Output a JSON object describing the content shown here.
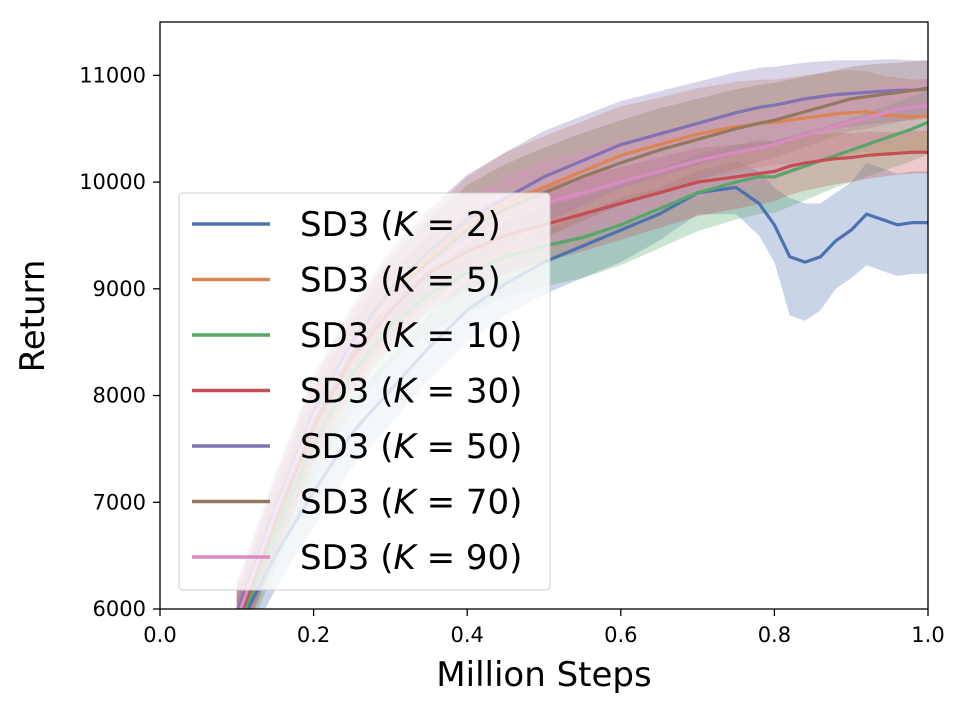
{
  "chart_data": {
    "type": "line",
    "title": "",
    "xlabel": "Million Steps",
    "ylabel": "Return",
    "xlim": [
      0.0,
      1.0
    ],
    "ylim": [
      6000,
      11500
    ],
    "xticks": [
      "0.0",
      "0.2",
      "0.4",
      "0.6",
      "0.8",
      "1.0"
    ],
    "yticks": [
      "6000",
      "7000",
      "8000",
      "9000",
      "10000",
      "11000"
    ],
    "legend_position": "lower-left",
    "x": [
      0.1,
      0.15,
      0.2,
      0.25,
      0.3,
      0.35,
      0.4,
      0.45,
      0.5,
      0.55,
      0.6,
      0.65,
      0.7,
      0.75,
      0.78,
      0.8,
      0.82,
      0.84,
      0.86,
      0.88,
      0.9,
      0.92,
      0.94,
      0.96,
      0.98,
      1.0
    ],
    "series": [
      {
        "name": "SD3 (K = 2)",
        "legend_prefix": "SD3 (",
        "legend_k": "K",
        "legend_eq": " = 2)",
        "color": "#4c72b0",
        "values": [
          5800,
          6500,
          7100,
          7650,
          8050,
          8450,
          8800,
          9050,
          9250,
          9400,
          9550,
          9700,
          9900,
          9950,
          9800,
          9600,
          9300,
          9250,
          9300,
          9450,
          9550,
          9700,
          9650,
          9600,
          9620,
          9620
        ],
        "spread": [
          300,
          320,
          330,
          330,
          320,
          310,
          300,
          300,
          300,
          300,
          300,
          250,
          200,
          250,
          300,
          350,
          550,
          550,
          500,
          450,
          450,
          480,
          480,
          480,
          480,
          480
        ]
      },
      {
        "name": "SD3 (K = 5)",
        "legend_prefix": "SD3 (",
        "legend_k": "K",
        "legend_eq": " = 5)",
        "color": "#dd8452",
        "values": [
          5900,
          6900,
          7800,
          8450,
          8950,
          9300,
          9600,
          9800,
          9950,
          10100,
          10250,
          10350,
          10450,
          10520,
          10550,
          10560,
          10580,
          10600,
          10620,
          10640,
          10650,
          10660,
          10630,
          10620,
          10610,
          10620
        ],
        "spread": [
          300,
          330,
          350,
          350,
          380,
          420,
          450,
          480,
          480,
          470,
          460,
          440,
          430,
          420,
          410,
          400,
          400,
          400,
          400,
          400,
          400,
          380,
          370,
          360,
          350,
          350
        ]
      },
      {
        "name": "SD3 (K = 10)",
        "legend_prefix": "SD3 (",
        "legend_k": "K",
        "legend_eq": " = 10)",
        "color": "#55a868",
        "values": [
          5800,
          6700,
          7550,
          8200,
          8650,
          8950,
          9150,
          9300,
          9400,
          9480,
          9600,
          9750,
          9900,
          10000,
          10050,
          10050,
          10100,
          10150,
          10200,
          10250,
          10300,
          10350,
          10400,
          10450,
          10500,
          10560
        ],
        "spread": [
          300,
          320,
          340,
          350,
          350,
          360,
          380,
          380,
          380,
          380,
          380,
          370,
          360,
          350,
          350,
          340,
          330,
          320,
          310,
          300,
          300,
          300,
          300,
          300,
          300,
          300
        ]
      },
      {
        "name": "SD3 (K = 30)",
        "legend_prefix": "SD3 (",
        "legend_k": "K",
        "legend_eq": " = 30)",
        "color": "#c44e52",
        "values": [
          5850,
          6800,
          7700,
          8350,
          8800,
          9150,
          9350,
          9500,
          9600,
          9700,
          9800,
          9900,
          10000,
          10050,
          10080,
          10100,
          10150,
          10180,
          10200,
          10220,
          10230,
          10250,
          10260,
          10270,
          10280,
          10280
        ],
        "spread": [
          300,
          320,
          340,
          350,
          350,
          360,
          360,
          360,
          350,
          350,
          340,
          330,
          320,
          300,
          290,
          280,
          270,
          260,
          250,
          240,
          230,
          220,
          210,
          200,
          200,
          200
        ]
      },
      {
        "name": "SD3 (K = 50)",
        "legend_prefix": "SD3 (",
        "legend_k": "K",
        "legend_eq": " = 50)",
        "color": "#8172b3",
        "values": [
          5950,
          6950,
          7850,
          8500,
          9000,
          9350,
          9650,
          9850,
          10050,
          10200,
          10350,
          10450,
          10550,
          10650,
          10700,
          10720,
          10750,
          10780,
          10800,
          10820,
          10830,
          10840,
          10850,
          10860,
          10860,
          10870
        ],
        "spread": [
          300,
          330,
          350,
          350,
          370,
          400,
          420,
          430,
          430,
          420,
          410,
          400,
          390,
          380,
          370,
          360,
          350,
          340,
          330,
          320,
          310,
          300,
          300,
          290,
          280,
          270
        ]
      },
      {
        "name": "SD3 (K = 70)",
        "legend_prefix": "SD3 (",
        "legend_k": "K",
        "legend_eq": " = 70)",
        "color": "#937860",
        "values": [
          5900,
          6850,
          7750,
          8400,
          8900,
          9250,
          9550,
          9750,
          9900,
          10050,
          10180,
          10300,
          10400,
          10500,
          10550,
          10580,
          10620,
          10660,
          10700,
          10740,
          10780,
          10800,
          10820,
          10840,
          10860,
          10880
        ],
        "spread": [
          300,
          330,
          350,
          350,
          380,
          400,
          420,
          420,
          420,
          410,
          400,
          390,
          380,
          370,
          360,
          350,
          340,
          330,
          320,
          310,
          300,
          300,
          290,
          280,
          270,
          260
        ]
      },
      {
        "name": "SD3 (K = 90)",
        "legend_prefix": "SD3 (",
        "legend_k": "K",
        "legend_eq": " = 90)",
        "color": "#da8bc3",
        "values": [
          5900,
          6900,
          7800,
          8450,
          8900,
          9200,
          9450,
          9650,
          9800,
          9900,
          10000,
          10100,
          10200,
          10280,
          10320,
          10350,
          10400,
          10440,
          10480,
          10520,
          10560,
          10600,
          10640,
          10680,
          10700,
          10720
        ],
        "spread": [
          300,
          330,
          350,
          360,
          380,
          400,
          410,
          410,
          400,
          390,
          380,
          370,
          360,
          350,
          340,
          330,
          320,
          310,
          300,
          300,
          290,
          280,
          270,
          260,
          250,
          250
        ]
      }
    ]
  }
}
